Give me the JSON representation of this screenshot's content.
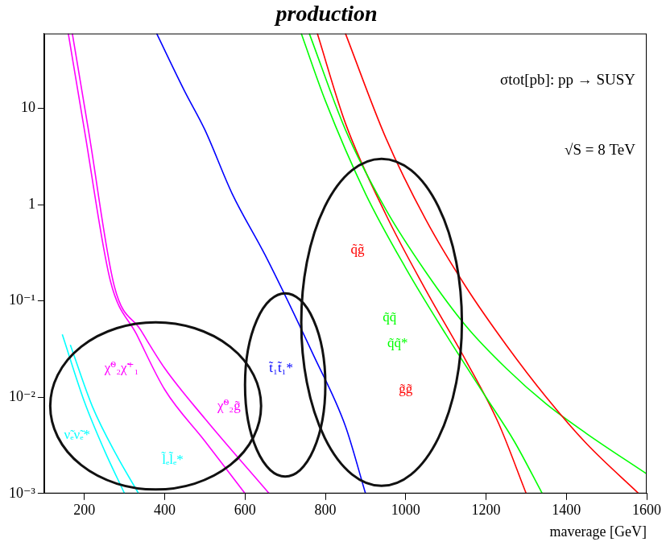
{
  "chart_data": {
    "type": "line",
    "title": "production",
    "annotations": [
      "σtot[pb]: pp → SUSY",
      "√S = 8 TeV"
    ],
    "x_label": "maverage [GeV]",
    "log": "y",
    "grid": false,
    "xlim": [
      100,
      1600
    ],
    "ylim": [
      0.001,
      60
    ],
    "xticks": [
      200,
      400,
      600,
      800,
      1000,
      1200,
      1400,
      1600
    ],
    "yticks": [
      {
        "value": 0.001,
        "label": "10⁻³"
      },
      {
        "value": 0.01,
        "label": "10⁻²"
      },
      {
        "value": 0.1,
        "label": "10⁻¹"
      },
      1,
      10
    ],
    "series": [
      {
        "name": "ν̃ₑν̃ₑ*",
        "color": "#00ffff",
        "x": [
          145,
          200,
          250,
          300
        ],
        "values": [
          0.045,
          0.009,
          0.0028,
          0.001
        ]
      },
      {
        "name": "l̃ₑl̃ₑ*",
        "color": "#00ffff",
        "x": [
          165,
          220,
          280,
          335
        ],
        "values": [
          0.035,
          0.008,
          0.0025,
          0.001
        ]
      },
      {
        "name": "χ̃⁰₂χ̃⁺₁",
        "color": "#ff00ff",
        "x": [
          160,
          200,
          265,
          330,
          400,
          500,
          600
        ],
        "values": [
          60,
          6,
          0.16,
          0.045,
          0.012,
          0.0035,
          0.001
        ]
      },
      {
        "name": "χ̃⁰₂g̃",
        "color": "#ff00ff",
        "x": [
          170,
          210,
          275,
          340,
          400,
          500,
          660
        ],
        "values": [
          60,
          6,
          0.14,
          0.05,
          0.02,
          0.006,
          0.001
        ]
      },
      {
        "name": "t̃₁t̃₁*",
        "color": "#0000ff",
        "x": [
          380,
          450,
          500,
          568,
          650,
          771,
          850,
          900
        ],
        "values": [
          60,
          15,
          6,
          1.3,
          0.3,
          0.027,
          0.005,
          0.001
        ]
      },
      {
        "name": "q̃g̃",
        "color": "#ff0000",
        "x": [
          850,
          950,
          1050,
          1150,
          1250,
          1350,
          1450,
          1580
        ],
        "values": [
          60,
          5,
          0.7,
          0.14,
          0.035,
          0.01,
          0.0033,
          0.001
        ]
      },
      {
        "name": "q̃q̃",
        "color": "#00ff00",
        "x": [
          760,
          850,
          950,
          1050,
          1150,
          1250,
          1350,
          1450,
          1600
        ],
        "values": [
          60,
          6,
          0.9,
          0.2,
          0.055,
          0.02,
          0.0085,
          0.0042,
          0.0016
        ]
      },
      {
        "name": "q̃q̃*",
        "color": "#00ff00",
        "x": [
          740,
          800,
          900,
          1000,
          1100,
          1200,
          1270,
          1340
        ],
        "values": [
          60,
          12,
          1.3,
          0.22,
          0.045,
          0.01,
          0.0035,
          0.001
        ]
      },
      {
        "name": "g̃g̃",
        "color": "#ff0000",
        "x": [
          780,
          850,
          950,
          1050,
          1150,
          1230,
          1300
        ],
        "values": [
          60,
          7,
          0.8,
          0.13,
          0.024,
          0.0055,
          0.001
        ]
      }
    ]
  }
}
